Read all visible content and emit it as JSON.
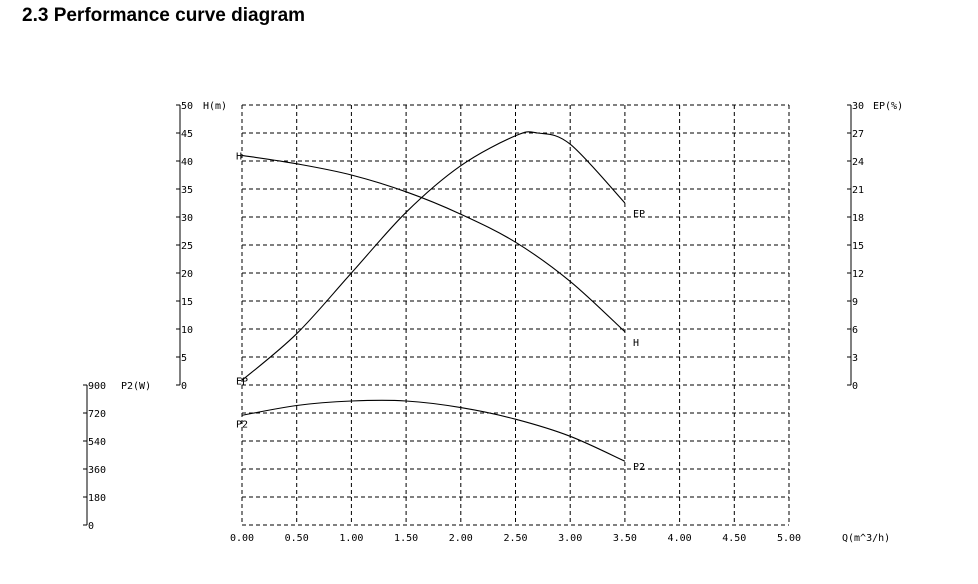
{
  "page": {
    "heading": "2.3 Performance curve diagram"
  },
  "chart_data": {
    "type": "line",
    "x": {
      "label": "Q(m^3/h)",
      "ticks": [
        "0.00",
        "0.50",
        "1.00",
        "1.50",
        "2.00",
        "2.50",
        "3.00",
        "3.50",
        "4.00",
        "4.50",
        "5.00"
      ],
      "range": [
        0,
        5
      ]
    },
    "axes": {
      "h": {
        "label": "H(m)",
        "ticks": [
          "0",
          "5",
          "10",
          "15",
          "20",
          "25",
          "30",
          "35",
          "40",
          "45",
          "50"
        ],
        "range": [
          0,
          50
        ]
      },
      "ep": {
        "label": "EP(%)",
        "ticks": [
          "0",
          "3",
          "6",
          "9",
          "12",
          "15",
          "18",
          "21",
          "24",
          "27",
          "30"
        ],
        "range": [
          0,
          30
        ]
      },
      "p2": {
        "label": "P2(W)",
        "ticks": [
          "0",
          "180",
          "360",
          "540",
          "720",
          "900"
        ],
        "range": [
          0,
          900
        ]
      }
    },
    "grid": true,
    "series": [
      {
        "name": "H",
        "axis": "h",
        "x": [
          0,
          0.5,
          1.0,
          1.5,
          2.0,
          2.5,
          3.0,
          3.5
        ],
        "y": [
          41,
          39.5,
          37.5,
          34.5,
          30.5,
          25.5,
          18.5,
          9.5
        ]
      },
      {
        "name": "EP",
        "axis": "ep",
        "x": [
          0,
          0.5,
          1.0,
          1.5,
          2.0,
          2.5,
          2.7,
          3.0,
          3.5
        ],
        "y": [
          0.5,
          5.5,
          12,
          18.5,
          23.5,
          26.7,
          27,
          25.8,
          19.5
        ]
      },
      {
        "name": "P2",
        "axis": "p2",
        "x": [
          0,
          0.5,
          1.0,
          1.5,
          2.0,
          2.5,
          3.0,
          3.5
        ],
        "y": [
          705,
          768,
          797,
          797,
          755,
          680,
          570,
          410
        ]
      }
    ],
    "curve_labels": {
      "left": [
        "H",
        "EP",
        "P2"
      ],
      "right": [
        "EP",
        "H",
        "P2"
      ]
    }
  }
}
